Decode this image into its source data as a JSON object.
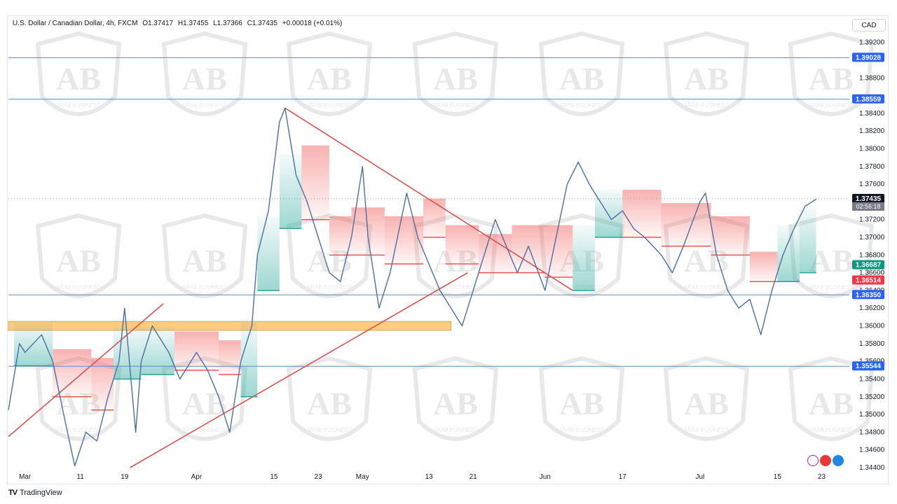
{
  "legend": {
    "symbol": "U.S. Dollar / Canadian Dollar, 4h, FXCM",
    "open": "O1.37417",
    "high": "H1.37455",
    "low": "L1.37366",
    "close": "C1.37435",
    "change": "+0.00018 (+0.01%)"
  },
  "currency_label": "CAD",
  "footer": {
    "logo": "TV",
    "brand": "TradingView"
  },
  "watermark": {
    "text": "ARAB BUSINESS"
  },
  "colors": {
    "price_line": "#4a6fa5",
    "level_line": "#5b8ac5",
    "trend_line": "#d9534f",
    "zone_fill": "#fbbf63",
    "cloud_green": "#26a69a",
    "cloud_red": "#ef5350",
    "tag_blue": "#2962ff",
    "tag_green": "#089981",
    "tag_red": "#f23645",
    "tag_gray": "#787b86"
  },
  "chart_data": {
    "type": "line",
    "symbol": "USDCAD",
    "timeframe": "4h",
    "ylim": [
      1.344,
      1.393
    ],
    "y_ticks": [
      "1.39200",
      "1.38800",
      "1.38400",
      "1.38200",
      "1.38000",
      "1.37800",
      "1.37600",
      "1.37200",
      "1.37000",
      "1.36800",
      "1.36600",
      "1.36400",
      "1.36200",
      "1.36000",
      "1.35800",
      "1.35600",
      "1.35400",
      "1.35200",
      "1.35000",
      "1.34800",
      "1.34600",
      "1.34400"
    ],
    "x_ticks": [
      {
        "label": "Mar",
        "date": "2024-03-01"
      },
      {
        "label": "11",
        "date": "2024-03-11"
      },
      {
        "label": "19",
        "date": "2024-03-19"
      },
      {
        "label": "Apr",
        "date": "2024-04-01"
      },
      {
        "label": "15",
        "date": "2024-04-15"
      },
      {
        "label": "23",
        "date": "2024-04-23"
      },
      {
        "label": "May",
        "date": "2024-05-01"
      },
      {
        "label": "13",
        "date": "2024-05-13"
      },
      {
        "label": "21",
        "date": "2024-05-21"
      },
      {
        "label": "Jun",
        "date": "2024-06-03"
      },
      {
        "label": "17",
        "date": "2024-06-17"
      },
      {
        "label": "Jul",
        "date": "2024-07-01"
      },
      {
        "label": "15",
        "date": "2024-07-15"
      },
      {
        "label": "23",
        "date": "2024-07-23"
      }
    ],
    "price_path": [
      [
        "2024-02-27",
        1.3505
      ],
      [
        "2024-02-29",
        1.358
      ],
      [
        "2024-03-01",
        1.357
      ],
      [
        "2024-03-04",
        1.359
      ],
      [
        "2024-03-06",
        1.356
      ],
      [
        "2024-03-08",
        1.35
      ],
      [
        "2024-03-10",
        1.3442
      ],
      [
        "2024-03-12",
        1.348
      ],
      [
        "2024-03-14",
        1.347
      ],
      [
        "2024-03-16",
        1.352
      ],
      [
        "2024-03-18",
        1.356
      ],
      [
        "2024-03-19",
        1.362
      ],
      [
        "2024-03-21",
        1.348
      ],
      [
        "2024-03-22",
        1.356
      ],
      [
        "2024-03-24",
        1.36
      ],
      [
        "2024-03-27",
        1.357
      ],
      [
        "2024-03-29",
        1.354
      ],
      [
        "2024-04-01",
        1.357
      ],
      [
        "2024-04-03",
        1.355
      ],
      [
        "2024-04-05",
        1.352
      ],
      [
        "2024-04-07",
        1.348
      ],
      [
        "2024-04-09",
        1.356
      ],
      [
        "2024-04-11",
        1.36
      ],
      [
        "2024-04-12",
        1.368
      ],
      [
        "2024-04-14",
        1.373
      ],
      [
        "2024-04-16",
        1.383
      ],
      [
        "2024-04-17",
        1.3846
      ],
      [
        "2024-04-19",
        1.377
      ],
      [
        "2024-04-21",
        1.374
      ],
      [
        "2024-04-23",
        1.37
      ],
      [
        "2024-04-25",
        1.366
      ],
      [
        "2024-04-27",
        1.365
      ],
      [
        "2024-04-29",
        1.37
      ],
      [
        "2024-05-01",
        1.378
      ],
      [
        "2024-05-02",
        1.37
      ],
      [
        "2024-05-04",
        1.362
      ],
      [
        "2024-05-06",
        1.366
      ],
      [
        "2024-05-08",
        1.372
      ],
      [
        "2024-05-09",
        1.375
      ],
      [
        "2024-05-11",
        1.37
      ],
      [
        "2024-05-13",
        1.367
      ],
      [
        "2024-05-15",
        1.364
      ],
      [
        "2024-05-17",
        1.362
      ],
      [
        "2024-05-19",
        1.36
      ],
      [
        "2024-05-21",
        1.364
      ],
      [
        "2024-05-23",
        1.368
      ],
      [
        "2024-05-25",
        1.372
      ],
      [
        "2024-05-27",
        1.369
      ],
      [
        "2024-05-29",
        1.366
      ],
      [
        "2024-05-31",
        1.369
      ],
      [
        "2024-06-03",
        1.364
      ],
      [
        "2024-06-05",
        1.37
      ],
      [
        "2024-06-07",
        1.376
      ],
      [
        "2024-06-09",
        1.3785
      ],
      [
        "2024-06-11",
        1.376
      ],
      [
        "2024-06-13",
        1.374
      ],
      [
        "2024-06-15",
        1.372
      ],
      [
        "2024-06-17",
        1.373
      ],
      [
        "2024-06-19",
        1.371
      ],
      [
        "2024-06-21",
        1.37
      ],
      [
        "2024-06-24",
        1.368
      ],
      [
        "2024-06-26",
        1.366
      ],
      [
        "2024-06-28",
        1.369
      ],
      [
        "2024-07-01",
        1.374
      ],
      [
        "2024-07-02",
        1.375
      ],
      [
        "2024-07-04",
        1.368
      ],
      [
        "2024-07-06",
        1.364
      ],
      [
        "2024-07-08",
        1.362
      ],
      [
        "2024-07-10",
        1.363
      ],
      [
        "2024-07-12",
        1.359
      ],
      [
        "2024-07-14",
        1.364
      ],
      [
        "2024-07-16",
        1.368
      ],
      [
        "2024-07-18",
        1.371
      ],
      [
        "2024-07-20",
        1.3735
      ],
      [
        "2024-07-22",
        1.3743
      ]
    ],
    "horizontal_levels": [
      1.39028,
      1.38559,
      1.3635,
      1.35544
    ],
    "price_tags": [
      {
        "label": "1.39028",
        "price": 1.39028,
        "kind": "level"
      },
      {
        "label": "1.38559",
        "price": 1.38559,
        "kind": "level"
      },
      {
        "label": "1.37435",
        "price": 1.37435,
        "kind": "last",
        "sub": "02:56:18"
      },
      {
        "label": "1.36687",
        "price": 1.36687,
        "kind": "green"
      },
      {
        "label": "1.36514",
        "price": 1.36514,
        "kind": "red"
      },
      {
        "label": "1.36350",
        "price": 1.3635,
        "kind": "level"
      },
      {
        "label": "1.35544",
        "price": 1.35544,
        "kind": "level"
      }
    ],
    "zone": {
      "price_top": 1.3605,
      "price_bottom": 1.3595,
      "from": "2024-02-27",
      "to": "2024-05-17"
    },
    "trend_lines": [
      {
        "from": [
          "2024-02-27",
          1.3475
        ],
        "to": [
          "2024-03-26",
          1.3625
        ]
      },
      {
        "from": [
          "2024-03-20",
          1.344
        ],
        "to": [
          "2024-05-20",
          1.366
        ]
      },
      {
        "from": [
          "2024-04-17",
          1.3846
        ],
        "to": [
          "2024-06-08",
          1.364
        ]
      }
    ],
    "cloud_steps": [
      [
        "2024-02-28",
        1.3555,
        1.358,
        "g"
      ],
      [
        "2024-03-06",
        1.352,
        1.355,
        "r"
      ],
      [
        "2024-03-13",
        1.3505,
        1.354,
        "r"
      ],
      [
        "2024-03-17",
        1.354,
        1.3575,
        "g"
      ],
      [
        "2024-03-22",
        1.3545,
        1.3575,
        "g"
      ],
      [
        "2024-03-28",
        1.355,
        1.357,
        "r"
      ],
      [
        "2024-04-05",
        1.356,
        1.3545,
        "r"
      ],
      [
        "2024-04-09",
        1.352,
        1.358,
        "g"
      ],
      [
        "2024-04-12",
        1.364,
        1.37,
        "g"
      ],
      [
        "2024-04-16",
        1.371,
        1.377,
        "g"
      ],
      [
        "2024-04-20",
        1.372,
        1.378,
        "r"
      ],
      [
        "2024-04-25",
        1.37,
        1.368,
        "r"
      ],
      [
        "2024-04-29",
        1.368,
        1.371,
        "r"
      ],
      [
        "2024-05-05",
        1.367,
        1.37,
        "r"
      ],
      [
        "2024-05-12",
        1.37,
        1.372,
        "r"
      ],
      [
        "2024-05-16",
        1.367,
        1.369,
        "r"
      ],
      [
        "2024-05-22",
        1.366,
        1.368,
        "r"
      ],
      [
        "2024-05-28",
        1.366,
        1.369,
        "r"
      ],
      [
        "2024-06-03",
        1.3655,
        1.369,
        "r"
      ],
      [
        "2024-06-08",
        1.364,
        1.369,
        "g"
      ],
      [
        "2024-06-12",
        1.37,
        1.373,
        "g"
      ],
      [
        "2024-06-17",
        1.37,
        1.373,
        "r"
      ],
      [
        "2024-06-24",
        1.369,
        1.3715,
        "r"
      ],
      [
        "2024-07-03",
        1.37,
        1.368,
        "r"
      ],
      [
        "2024-07-10",
        1.365,
        1.366,
        "r"
      ],
      [
        "2024-07-15",
        1.365,
        1.369,
        "g"
      ],
      [
        "2024-07-19",
        1.366,
        1.371,
        "g"
      ]
    ]
  }
}
